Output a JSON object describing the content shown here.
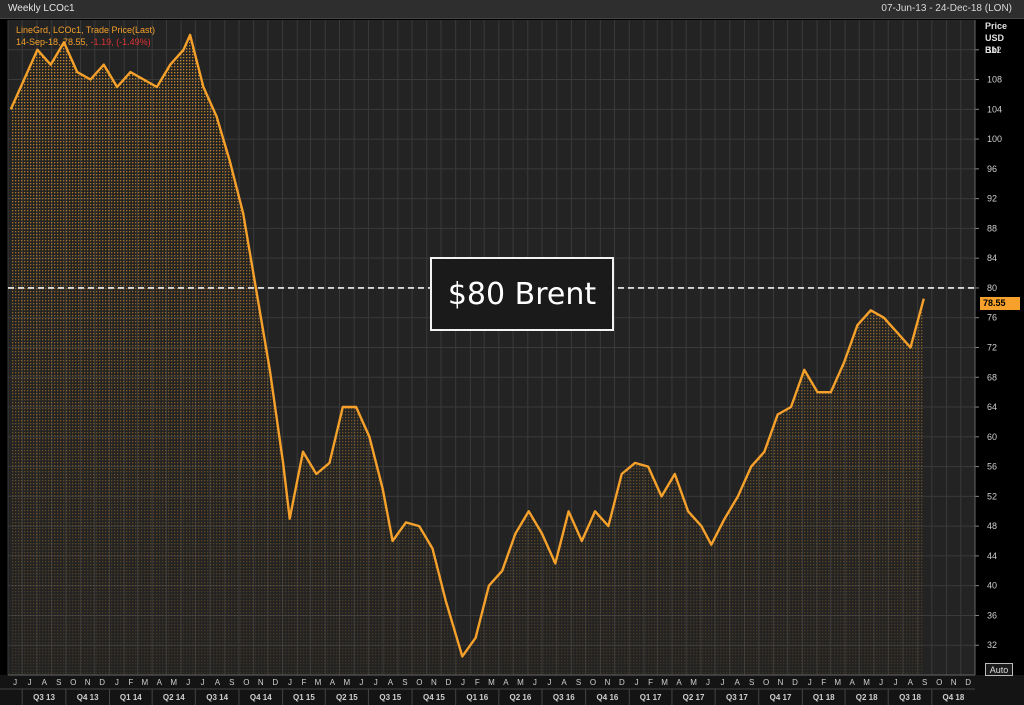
{
  "window": {
    "title": "Weekly LCOc1",
    "date_range": "07-Jun-13 - 24-Dec-18 (LON)"
  },
  "legend": {
    "line1": "LineGrd, LCOc1, Trade Price(Last)",
    "line2_date": "14-Sep-18,",
    "line2_value": "78.55,",
    "line2_change": "-1.19, (-1.49%)"
  },
  "annotation": {
    "text": "$80 Brent"
  },
  "axis": {
    "y_title": [
      "Price",
      "USD",
      "Bbl"
    ],
    "last_price_tag": "78.55",
    "auto_label": "Auto"
  },
  "colors": {
    "background": "#000000",
    "panel": "#232323",
    "line": "#f5a12b",
    "negative": "#e03030",
    "grid": "#3a3a3a",
    "axis_text": "#cfcfcf"
  },
  "chart_data": {
    "type": "area",
    "series": [
      {
        "name": "LCOc1, Trade Price(Last)",
        "x": [
          "2013-06-07",
          "2013-07-05",
          "2013-08-02",
          "2013-08-30",
          "2013-09-27",
          "2013-10-25",
          "2013-11-22",
          "2013-12-20",
          "2014-01-17",
          "2014-02-14",
          "2014-03-14",
          "2014-04-11",
          "2014-05-09",
          "2014-06-06",
          "2014-06-20",
          "2014-07-18",
          "2014-08-15",
          "2014-09-12",
          "2014-10-10",
          "2014-11-07",
          "2014-12-05",
          "2015-01-02",
          "2015-01-16",
          "2015-02-13",
          "2015-03-13",
          "2015-04-10",
          "2015-05-08",
          "2015-06-05",
          "2015-07-03",
          "2015-07-31",
          "2015-08-21",
          "2015-09-18",
          "2015-10-16",
          "2015-11-13",
          "2015-12-11",
          "2016-01-15",
          "2016-02-12",
          "2016-03-11",
          "2016-04-08",
          "2016-05-06",
          "2016-06-03",
          "2016-07-01",
          "2016-07-29",
          "2016-08-26",
          "2016-09-23",
          "2016-10-21",
          "2016-11-18",
          "2016-12-16",
          "2017-01-13",
          "2017-02-10",
          "2017-03-10",
          "2017-04-07",
          "2017-05-05",
          "2017-06-02",
          "2017-06-23",
          "2017-07-21",
          "2017-08-18",
          "2017-09-15",
          "2017-10-13",
          "2017-11-10",
          "2017-12-08",
          "2018-01-05",
          "2018-02-02",
          "2018-03-02",
          "2018-03-30",
          "2018-04-27",
          "2018-05-25",
          "2018-06-22",
          "2018-07-20",
          "2018-08-17",
          "2018-09-14"
        ],
        "values": [
          104.0,
          108.0,
          112.0,
          110.0,
          113.0,
          109.0,
          108.0,
          110.0,
          107.0,
          109.0,
          108.0,
          107.0,
          110.0,
          112.0,
          114.0,
          107.0,
          103.0,
          97.0,
          90.0,
          79.5,
          69.0,
          56.5,
          49.0,
          58.0,
          55.0,
          56.5,
          64.0,
          64.0,
          60.0,
          53.0,
          46.0,
          48.5,
          48.0,
          45.0,
          38.0,
          30.5,
          33.0,
          40.0,
          42.0,
          47.0,
          50.0,
          47.0,
          43.0,
          50.0,
          46.0,
          50.0,
          48.0,
          55.0,
          56.5,
          56.0,
          52.0,
          55.0,
          50.0,
          48.0,
          45.5,
          49.0,
          52.0,
          56.0,
          58.0,
          63.0,
          64.0,
          69.0,
          66.0,
          66.0,
          70.0,
          75.0,
          77.0,
          76.0,
          74.0,
          72.0,
          78.55
        ]
      }
    ],
    "ylim": [
      28,
      116
    ],
    "yticks": [
      32,
      36,
      40,
      44,
      48,
      52,
      56,
      60,
      64,
      68,
      72,
      76,
      80,
      84,
      88,
      92,
      96,
      100,
      104,
      108,
      112
    ],
    "xlim": [
      "2013-06-01",
      "2018-12-31"
    ],
    "x_month_labels": [
      "J",
      "J",
      "A",
      "S",
      "O",
      "N",
      "D",
      "J",
      "F",
      "M",
      "A",
      "M",
      "J",
      "J",
      "A",
      "S",
      "O",
      "N",
      "D",
      "J",
      "F",
      "M",
      "A",
      "M",
      "J",
      "J",
      "A",
      "S",
      "O",
      "N",
      "D",
      "J",
      "F",
      "M",
      "A",
      "M",
      "J",
      "J",
      "A",
      "S",
      "O",
      "N",
      "D",
      "J",
      "F",
      "M",
      "A",
      "M",
      "J",
      "J",
      "A",
      "S",
      "O",
      "N",
      "D",
      "J",
      "F",
      "M",
      "A",
      "M",
      "J",
      "J",
      "A",
      "S",
      "O",
      "N",
      "D"
    ],
    "x_quarter_labels": [
      "Q3 13",
      "Q4 13",
      "Q1 14",
      "Q2 14",
      "Q3 14",
      "Q4 14",
      "Q1 15",
      "Q2 15",
      "Q3 15",
      "Q4 15",
      "Q1 16",
      "Q2 16",
      "Q3 16",
      "Q4 16",
      "Q1 17",
      "Q2 17",
      "Q3 17",
      "Q4 17",
      "Q1 18",
      "Q2 18",
      "Q3 18",
      "Q4 18"
    ],
    "reference_line": {
      "value": 80
    },
    "grid": true
  }
}
